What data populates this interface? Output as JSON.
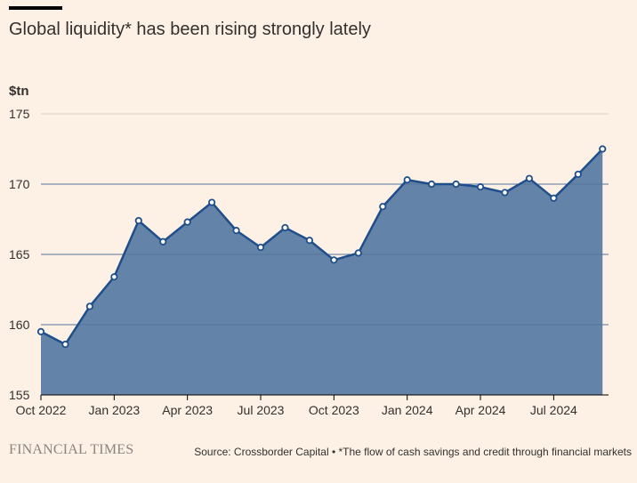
{
  "header": {
    "title": "Global liquidity* has been rising strongly lately"
  },
  "footer": {
    "brand": "FINANCIAL TIMES",
    "source": "Source: Crossborder Capital • *The flow of cash savings and credit through financial markets"
  },
  "colors": {
    "background": "#fdf1e6",
    "area_fill": "#6483a8",
    "line": "#1f4e8a",
    "gridline": "#d8cbbf",
    "text": "#33302e"
  },
  "chart_data": {
    "type": "area",
    "title": "Global liquidity* has been rising strongly lately",
    "ylabel": "$tn",
    "xlabel": "",
    "ylim": [
      155,
      175
    ],
    "yticks": [
      155,
      160,
      165,
      170,
      175
    ],
    "xlim": [
      0,
      23.1
    ],
    "xticks": [
      {
        "x": 0,
        "label": "Oct 2022"
      },
      {
        "x": 3,
        "label": "Jan 2023"
      },
      {
        "x": 6,
        "label": "Apr 2023"
      },
      {
        "x": 9,
        "label": "Jul 2023"
      },
      {
        "x": 12,
        "label": "Oct 2023"
      },
      {
        "x": 15,
        "label": "Jan 2024"
      },
      {
        "x": 18,
        "label": "Apr 2024"
      },
      {
        "x": 21,
        "label": "Jul 2024"
      }
    ],
    "grid": true,
    "series": [
      {
        "name": "Global liquidity",
        "x": [
          0,
          1,
          2,
          3,
          4,
          5,
          6,
          7,
          8,
          9,
          10,
          11,
          12,
          13,
          14,
          15,
          16,
          17,
          18,
          19,
          20,
          21,
          22,
          23
        ],
        "values": [
          159.5,
          158.6,
          161.3,
          163.4,
          167.4,
          165.9,
          167.3,
          168.7,
          166.7,
          165.5,
          166.9,
          166.0,
          164.6,
          165.1,
          168.4,
          170.3,
          170.0,
          170.0,
          169.8,
          169.4,
          170.4,
          169.0,
          170.7,
          172.5
        ]
      }
    ]
  }
}
